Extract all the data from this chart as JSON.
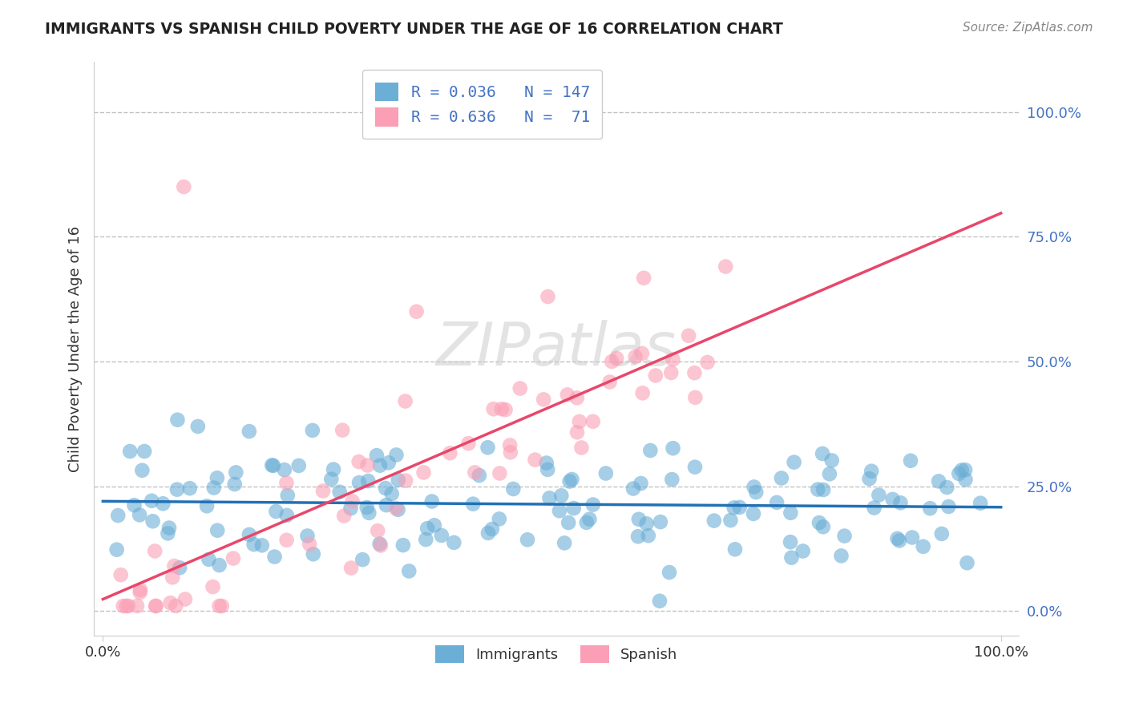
{
  "title": "IMMIGRANTS VS SPANISH CHILD POVERTY UNDER THE AGE OF 16 CORRELATION CHART",
  "source": "Source: ZipAtlas.com",
  "ylabel": "Child Poverty Under the Age of 16",
  "watermark": "ZIPatlas",
  "immigrants_R": 0.036,
  "immigrants_N": 147,
  "spanish_R": 0.636,
  "spanish_N": 71,
  "blue_color": "#6baed6",
  "pink_color": "#fa9fb5",
  "blue_line_color": "#2171b5",
  "pink_line_color": "#e8476a",
  "right_ytick_vals": [
    0.0,
    0.25,
    0.5,
    0.75,
    1.0
  ],
  "right_yticklabels": [
    "0.0%",
    "25.0%",
    "50.0%",
    "75.0%",
    "100.0%"
  ],
  "bottom_xticklabels": [
    "0.0%",
    "100.0%"
  ]
}
